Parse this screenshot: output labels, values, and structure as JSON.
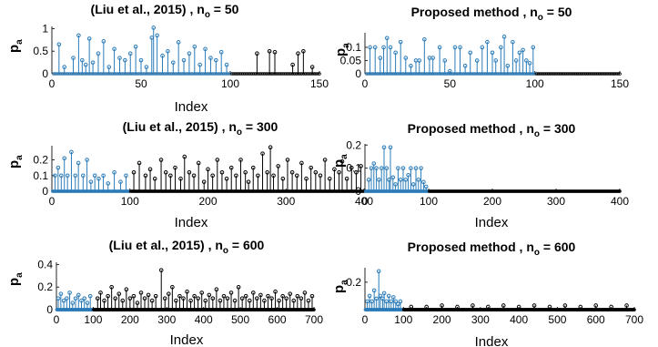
{
  "colors": {
    "first_segment": "#2b7bb9",
    "rest": "#000000",
    "axis": "#262626",
    "background": "#ffffff"
  },
  "chart_data": [
    {
      "type": "stem",
      "panel": "liu-50",
      "title_prefix": "(Liu et al., 2015) , n",
      "title_sub": "o",
      "title_suffix": " = 50",
      "xlabel": "Index",
      "ylabel": "p",
      "ylabel_sub": "a",
      "xlim": [
        0,
        150
      ],
      "ylim": [
        0,
        1.05
      ],
      "xticks": [
        0,
        50,
        100,
        150
      ],
      "yticks": [
        0,
        0.5,
        1
      ],
      "xtick_labels": [
        "0",
        "50",
        "100",
        "150"
      ],
      "ytick_labels": [
        "0",
        "0.5",
        "1"
      ],
      "n": 150,
      "highlight_n": 100,
      "points": [
        [
          4,
          0.65
        ],
        [
          7,
          0.15
        ],
        [
          12,
          0.35
        ],
        [
          15,
          0.85
        ],
        [
          17,
          0.3
        ],
        [
          19,
          0.2
        ],
        [
          21,
          0.78
        ],
        [
          23,
          0.25
        ],
        [
          26,
          0.45
        ],
        [
          29,
          0.72
        ],
        [
          32,
          0.15
        ],
        [
          35,
          0.55
        ],
        [
          38,
          0.35
        ],
        [
          41,
          0.3
        ],
        [
          44,
          0.45
        ],
        [
          47,
          0.6
        ],
        [
          50,
          0.3
        ],
        [
          53,
          0.15
        ],
        [
          56,
          0.8
        ],
        [
          57,
          1.02
        ],
        [
          59,
          0.85
        ],
        [
          62,
          0.4
        ],
        [
          65,
          0.5
        ],
        [
          68,
          0.25
        ],
        [
          71,
          0.7
        ],
        [
          74,
          0.3
        ],
        [
          77,
          0.45
        ],
        [
          80,
          0.6
        ],
        [
          83,
          0.2
        ],
        [
          86,
          0.55
        ],
        [
          89,
          0.35
        ],
        [
          92,
          0.3
        ],
        [
          95,
          0.48
        ],
        [
          98,
          0.2
        ],
        [
          115,
          0.45
        ],
        [
          122,
          0.5
        ],
        [
          125,
          0.48
        ],
        [
          135,
          0.2
        ],
        [
          138,
          0.45
        ],
        [
          141,
          0.5
        ],
        [
          146,
          0.15
        ]
      ]
    },
    {
      "type": "stem",
      "panel": "proposed-50",
      "title_prefix": "Proposed method , n",
      "title_sub": "o",
      "title_suffix": " = 50",
      "xlabel": "",
      "ylabel": "p",
      "ylabel_sub": "a",
      "xlim": [
        0,
        150
      ],
      "ylim": [
        0,
        0.155
      ],
      "xticks": [
        0,
        50,
        100,
        150
      ],
      "yticks": [
        0,
        0.05,
        0.1
      ],
      "xtick_labels": [
        "0",
        "50",
        "100",
        "150"
      ],
      "ytick_labels": [
        "0",
        "0.05",
        "0.1"
      ],
      "n": 150,
      "highlight_n": 100,
      "points": [
        [
          3,
          0.1
        ],
        [
          6,
          0.1
        ],
        [
          9,
          0.06
        ],
        [
          11,
          0.1
        ],
        [
          13,
          0.135
        ],
        [
          15,
          0.1
        ],
        [
          18,
          0.08
        ],
        [
          21,
          0.12
        ],
        [
          24,
          0.06
        ],
        [
          27,
          0.03
        ],
        [
          30,
          0.05
        ],
        [
          32,
          0.05
        ],
        [
          35,
          0.13
        ],
        [
          38,
          0.06
        ],
        [
          40,
          0.06
        ],
        [
          44,
          0.1
        ],
        [
          47,
          0.05
        ],
        [
          50,
          0.01
        ],
        [
          53,
          0.1
        ],
        [
          56,
          0.1
        ],
        [
          59,
          0.03
        ],
        [
          62,
          0.08
        ],
        [
          66,
          0.05
        ],
        [
          69,
          0.1
        ],
        [
          72,
          0.12
        ],
        [
          75,
          0.08
        ],
        [
          77,
          0.05
        ],
        [
          80,
          0.1
        ],
        [
          82,
          0.14
        ],
        [
          84,
          0.03
        ],
        [
          87,
          0.12
        ],
        [
          89,
          0.05
        ],
        [
          91,
          0.08
        ],
        [
          93,
          0.09
        ],
        [
          95,
          0.05
        ],
        [
          97,
          0.04
        ],
        [
          99,
          0.1
        ]
      ]
    },
    {
      "type": "stem",
      "panel": "liu-300",
      "title_prefix": "(Liu et al., 2015) , n",
      "title_sub": "o",
      "title_suffix": " = 300",
      "xlabel": "Index",
      "ylabel": "p",
      "ylabel_sub": "a",
      "xlim": [
        0,
        400
      ],
      "ylim": [
        0,
        0.29
      ],
      "xticks": [
        0,
        100,
        200,
        300,
        400
      ],
      "yticks": [
        0,
        0.1,
        0.2
      ],
      "xtick_labels": [
        "0",
        "100",
        "200",
        "300",
        "400"
      ],
      "ytick_labels": [
        "0",
        "0.1",
        "0.2"
      ],
      "n": 400,
      "highlight_n": 100,
      "points": [
        [
          4,
          0.1
        ],
        [
          8,
          0.15
        ],
        [
          12,
          0.1
        ],
        [
          16,
          0.21
        ],
        [
          20,
          0.1
        ],
        [
          25,
          0.25
        ],
        [
          30,
          0.1
        ],
        [
          34,
          0.18
        ],
        [
          40,
          0.1
        ],
        [
          45,
          0.2
        ],
        [
          50,
          0.06
        ],
        [
          55,
          0.1
        ],
        [
          60,
          0.08
        ],
        [
          66,
          0.1
        ],
        [
          72,
          0.05
        ],
        [
          80,
          0.12
        ],
        [
          88,
          0.06
        ],
        [
          95,
          0.1
        ],
        [
          105,
          0.12
        ],
        [
          112,
          0.18
        ],
        [
          120,
          0.1
        ],
        [
          126,
          0.14
        ],
        [
          132,
          0.08
        ],
        [
          140,
          0.2
        ],
        [
          146,
          0.12
        ],
        [
          152,
          0.1
        ],
        [
          158,
          0.15
        ],
        [
          165,
          0.08
        ],
        [
          170,
          0.22
        ],
        [
          176,
          0.12
        ],
        [
          182,
          0.1
        ],
        [
          188,
          0.18
        ],
        [
          195,
          0.06
        ],
        [
          200,
          0.14
        ],
        [
          206,
          0.1
        ],
        [
          212,
          0.2
        ],
        [
          218,
          0.12
        ],
        [
          224,
          0.08
        ],
        [
          230,
          0.15
        ],
        [
          236,
          0.1
        ],
        [
          242,
          0.2
        ],
        [
          248,
          0.12
        ],
        [
          252,
          0.06
        ],
        [
          258,
          0.15
        ],
        [
          264,
          0.1
        ],
        [
          270,
          0.24
        ],
        [
          276,
          0.12
        ],
        [
          280,
          0.28
        ],
        [
          284,
          0.1
        ],
        [
          290,
          0.16
        ],
        [
          296,
          0.08
        ],
        [
          302,
          0.2
        ],
        [
          308,
          0.12
        ],
        [
          314,
          0.1
        ],
        [
          320,
          0.18
        ],
        [
          326,
          0.08
        ],
        [
          332,
          0.15
        ],
        [
          338,
          0.12
        ],
        [
          344,
          0.1
        ],
        [
          350,
          0.2
        ],
        [
          356,
          0.08
        ],
        [
          362,
          0.14
        ],
        [
          368,
          0.12
        ],
        [
          372,
          0.19
        ],
        [
          378,
          0.08
        ],
        [
          384,
          0.15
        ],
        [
          390,
          0.12
        ],
        [
          396,
          0.16
        ]
      ]
    },
    {
      "type": "stem",
      "panel": "proposed-300",
      "title_prefix": "Proposed method , n",
      "title_sub": "o",
      "title_suffix": " = 300",
      "xlabel": "Index",
      "ylabel": "p",
      "ylabel_sub": "a",
      "xlim": [
        0,
        400
      ],
      "ylim": [
        0,
        0.205
      ],
      "xticks": [
        0,
        100,
        200,
        300,
        400
      ],
      "yticks": [
        0,
        0.1,
        0.2
      ],
      "xtick_labels": [
        "0",
        "100",
        "200",
        "300",
        "400"
      ],
      "ytick_labels": [
        "0",
        "0.1",
        "0.2"
      ],
      "n": 400,
      "highlight_n": 100,
      "points": [
        [
          6,
          0.05
        ],
        [
          10,
          0.1
        ],
        [
          14,
          0.12
        ],
        [
          18,
          0.1
        ],
        [
          22,
          0.05
        ],
        [
          26,
          0.1
        ],
        [
          30,
          0.19
        ],
        [
          34,
          0.1
        ],
        [
          38,
          0.05
        ],
        [
          40,
          0.19
        ],
        [
          44,
          0.06
        ],
        [
          48,
          0.03
        ],
        [
          52,
          0.1
        ],
        [
          56,
          0.05
        ],
        [
          60,
          0.1
        ],
        [
          64,
          0.05
        ],
        [
          68,
          0.07
        ],
        [
          72,
          0.1
        ],
        [
          76,
          0.03
        ],
        [
          80,
          0.1
        ],
        [
          84,
          0.05
        ],
        [
          88,
          0.1
        ],
        [
          92,
          0.04
        ],
        [
          96,
          0.02
        ]
      ]
    },
    {
      "type": "stem",
      "panel": "liu-600",
      "title_prefix": "(Liu et al., 2015) , n",
      "title_sub": "o",
      "title_suffix": " = 600",
      "xlabel": "Index",
      "ylabel": "p",
      "ylabel_sub": "a",
      "xlim": [
        0,
        700
      ],
      "ylim": [
        0,
        0.42
      ],
      "xticks": [
        0,
        100,
        200,
        300,
        400,
        500,
        600,
        700
      ],
      "yticks": [
        0,
        0.2,
        0.4
      ],
      "xtick_labels": [
        "0",
        "100",
        "200",
        "300",
        "400",
        "500",
        "600",
        "700"
      ],
      "ytick_labels": [
        "0",
        "0.2",
        "0.4"
      ],
      "n": 700,
      "highlight_n": 100,
      "points": [
        [
          5,
          0.1
        ],
        [
          12,
          0.14
        ],
        [
          20,
          0.08
        ],
        [
          28,
          0.1
        ],
        [
          36,
          0.15
        ],
        [
          44,
          0.06
        ],
        [
          52,
          0.1
        ],
        [
          60,
          0.13
        ],
        [
          68,
          0.08
        ],
        [
          76,
          0.1
        ],
        [
          84,
          0.06
        ],
        [
          92,
          0.12
        ],
        [
          112,
          0.1
        ],
        [
          120,
          0.15
        ],
        [
          130,
          0.08
        ],
        [
          140,
          0.12
        ],
        [
          150,
          0.2
        ],
        [
          160,
          0.1
        ],
        [
          170,
          0.14
        ],
        [
          180,
          0.08
        ],
        [
          190,
          0.18
        ],
        [
          200,
          0.1
        ],
        [
          210,
          0.12
        ],
        [
          220,
          0.06
        ],
        [
          230,
          0.15
        ],
        [
          240,
          0.1
        ],
        [
          250,
          0.13
        ],
        [
          260,
          0.08
        ],
        [
          270,
          0.12
        ],
        [
          285,
          0.35
        ],
        [
          295,
          0.1
        ],
        [
          305,
          0.14
        ],
        [
          315,
          0.2
        ],
        [
          325,
          0.08
        ],
        [
          335,
          0.12
        ],
        [
          345,
          0.1
        ],
        [
          355,
          0.16
        ],
        [
          365,
          0.08
        ],
        [
          375,
          0.12
        ],
        [
          385,
          0.1
        ],
        [
          395,
          0.15
        ],
        [
          405,
          0.08
        ],
        [
          415,
          0.13
        ],
        [
          425,
          0.1
        ],
        [
          435,
          0.18
        ],
        [
          445,
          0.08
        ],
        [
          455,
          0.12
        ],
        [
          465,
          0.1
        ],
        [
          475,
          0.15
        ],
        [
          485,
          0.08
        ],
        [
          495,
          0.2
        ],
        [
          505,
          0.1
        ],
        [
          515,
          0.12
        ],
        [
          525,
          0.08
        ],
        [
          535,
          0.15
        ],
        [
          545,
          0.1
        ],
        [
          555,
          0.13
        ],
        [
          565,
          0.08
        ],
        [
          575,
          0.12
        ],
        [
          585,
          0.1
        ],
        [
          595,
          0.16
        ],
        [
          605,
          0.08
        ],
        [
          615,
          0.12
        ],
        [
          625,
          0.1
        ],
        [
          635,
          0.14
        ],
        [
          645,
          0.08
        ],
        [
          655,
          0.12
        ],
        [
          665,
          0.1
        ],
        [
          675,
          0.15
        ],
        [
          685,
          0.08
        ],
        [
          695,
          0.12
        ]
      ]
    },
    {
      "type": "stem",
      "panel": "proposed-600",
      "title_prefix": "Proposed method , n",
      "title_sub": "o",
      "title_suffix": " = 600",
      "xlabel": "Index",
      "ylabel": "p",
      "ylabel_sub": "a",
      "xlim": [
        0,
        700
      ],
      "ylim": [
        0,
        0.305
      ],
      "xticks": [
        0,
        100,
        200,
        300,
        400,
        500,
        600,
        700
      ],
      "yticks": [
        0.2
      ],
      "xtick_labels": [
        "0",
        "100",
        "200",
        "300",
        "400",
        "500",
        "600",
        "700"
      ],
      "ytick_labels": [
        "0.2"
      ],
      "n": 700,
      "highlight_n": 100,
      "points": [
        [
          6,
          0.06
        ],
        [
          12,
          0.1
        ],
        [
          18,
          0.06
        ],
        [
          24,
          0.14
        ],
        [
          30,
          0.08
        ],
        [
          36,
          0.28
        ],
        [
          40,
          0.1
        ],
        [
          46,
          0.08
        ],
        [
          50,
          0.12
        ],
        [
          56,
          0.06
        ],
        [
          62,
          0.1
        ],
        [
          68,
          0.06
        ],
        [
          74,
          0.09
        ],
        [
          80,
          0.06
        ],
        [
          86,
          0.04
        ],
        [
          92,
          0.06
        ],
        [
          120,
          0.02
        ],
        [
          160,
          0.02
        ],
        [
          200,
          0.03
        ],
        [
          240,
          0.02
        ],
        [
          280,
          0.03
        ],
        [
          320,
          0.02
        ],
        [
          360,
          0.03
        ],
        [
          400,
          0.02
        ],
        [
          440,
          0.03
        ],
        [
          480,
          0.02
        ],
        [
          520,
          0.03
        ],
        [
          560,
          0.02
        ],
        [
          600,
          0.03
        ],
        [
          640,
          0.02
        ],
        [
          680,
          0.03
        ]
      ]
    }
  ]
}
